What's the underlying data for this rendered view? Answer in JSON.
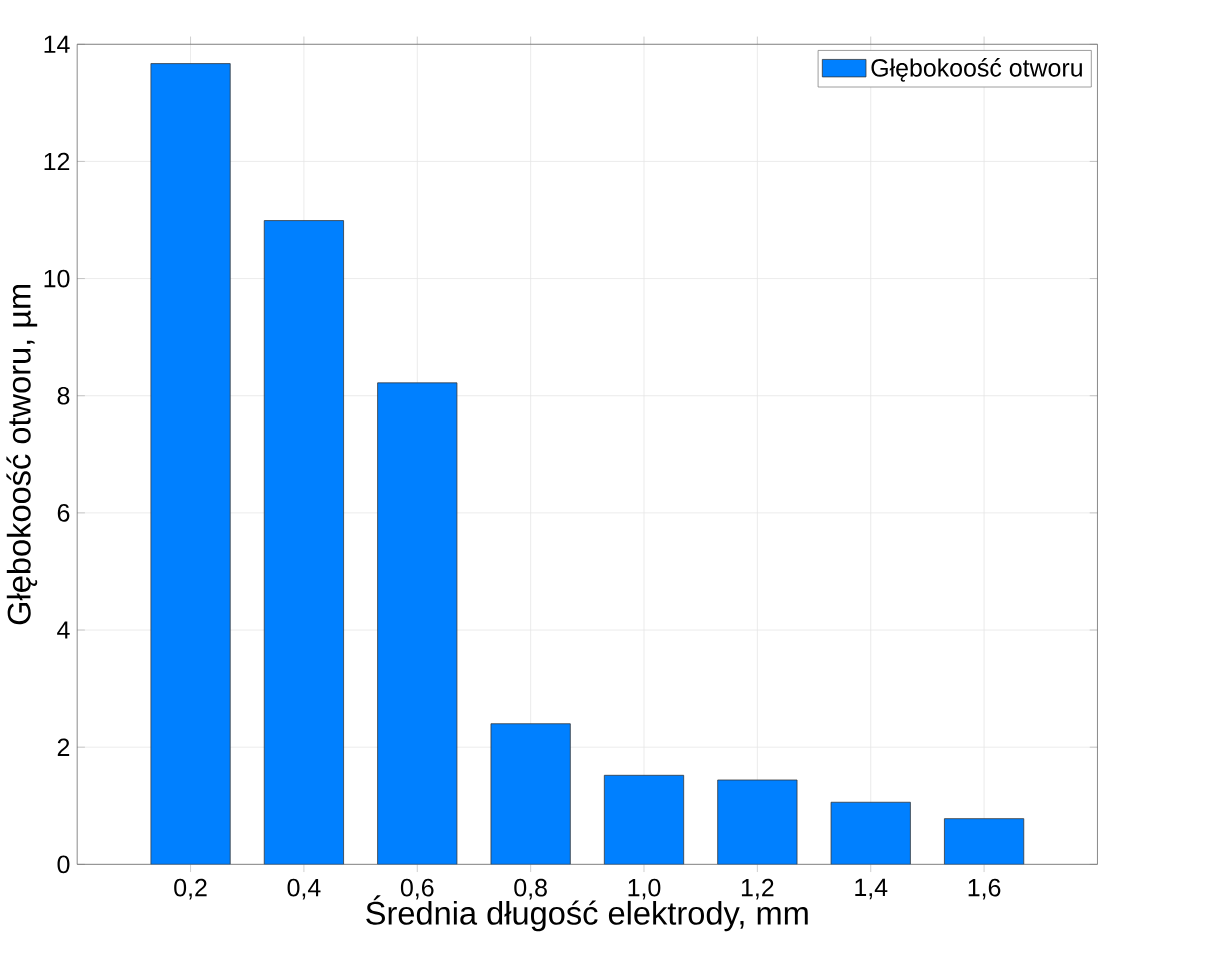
{
  "chart_data": {
    "type": "bar",
    "xlabel": "Średnia długość elektrody, mm",
    "ylabel": "Głębokoość otworu, µm",
    "categories": [
      "0,2",
      "0,4",
      "0,6",
      "0,8",
      "1,0",
      "1,2",
      "1,4",
      "1,6"
    ],
    "series": [
      {
        "name": "Głębokoość otworu",
        "color": "#0080ff",
        "values": [
          13.67,
          10.99,
          8.22,
          2.4,
          1.52,
          1.44,
          1.06,
          0.78
        ]
      }
    ],
    "ylim": [
      0,
      14
    ],
    "yticks": [
      0,
      2,
      4,
      6,
      8,
      10,
      12,
      14
    ],
    "grid": true,
    "legend": "top right"
  }
}
